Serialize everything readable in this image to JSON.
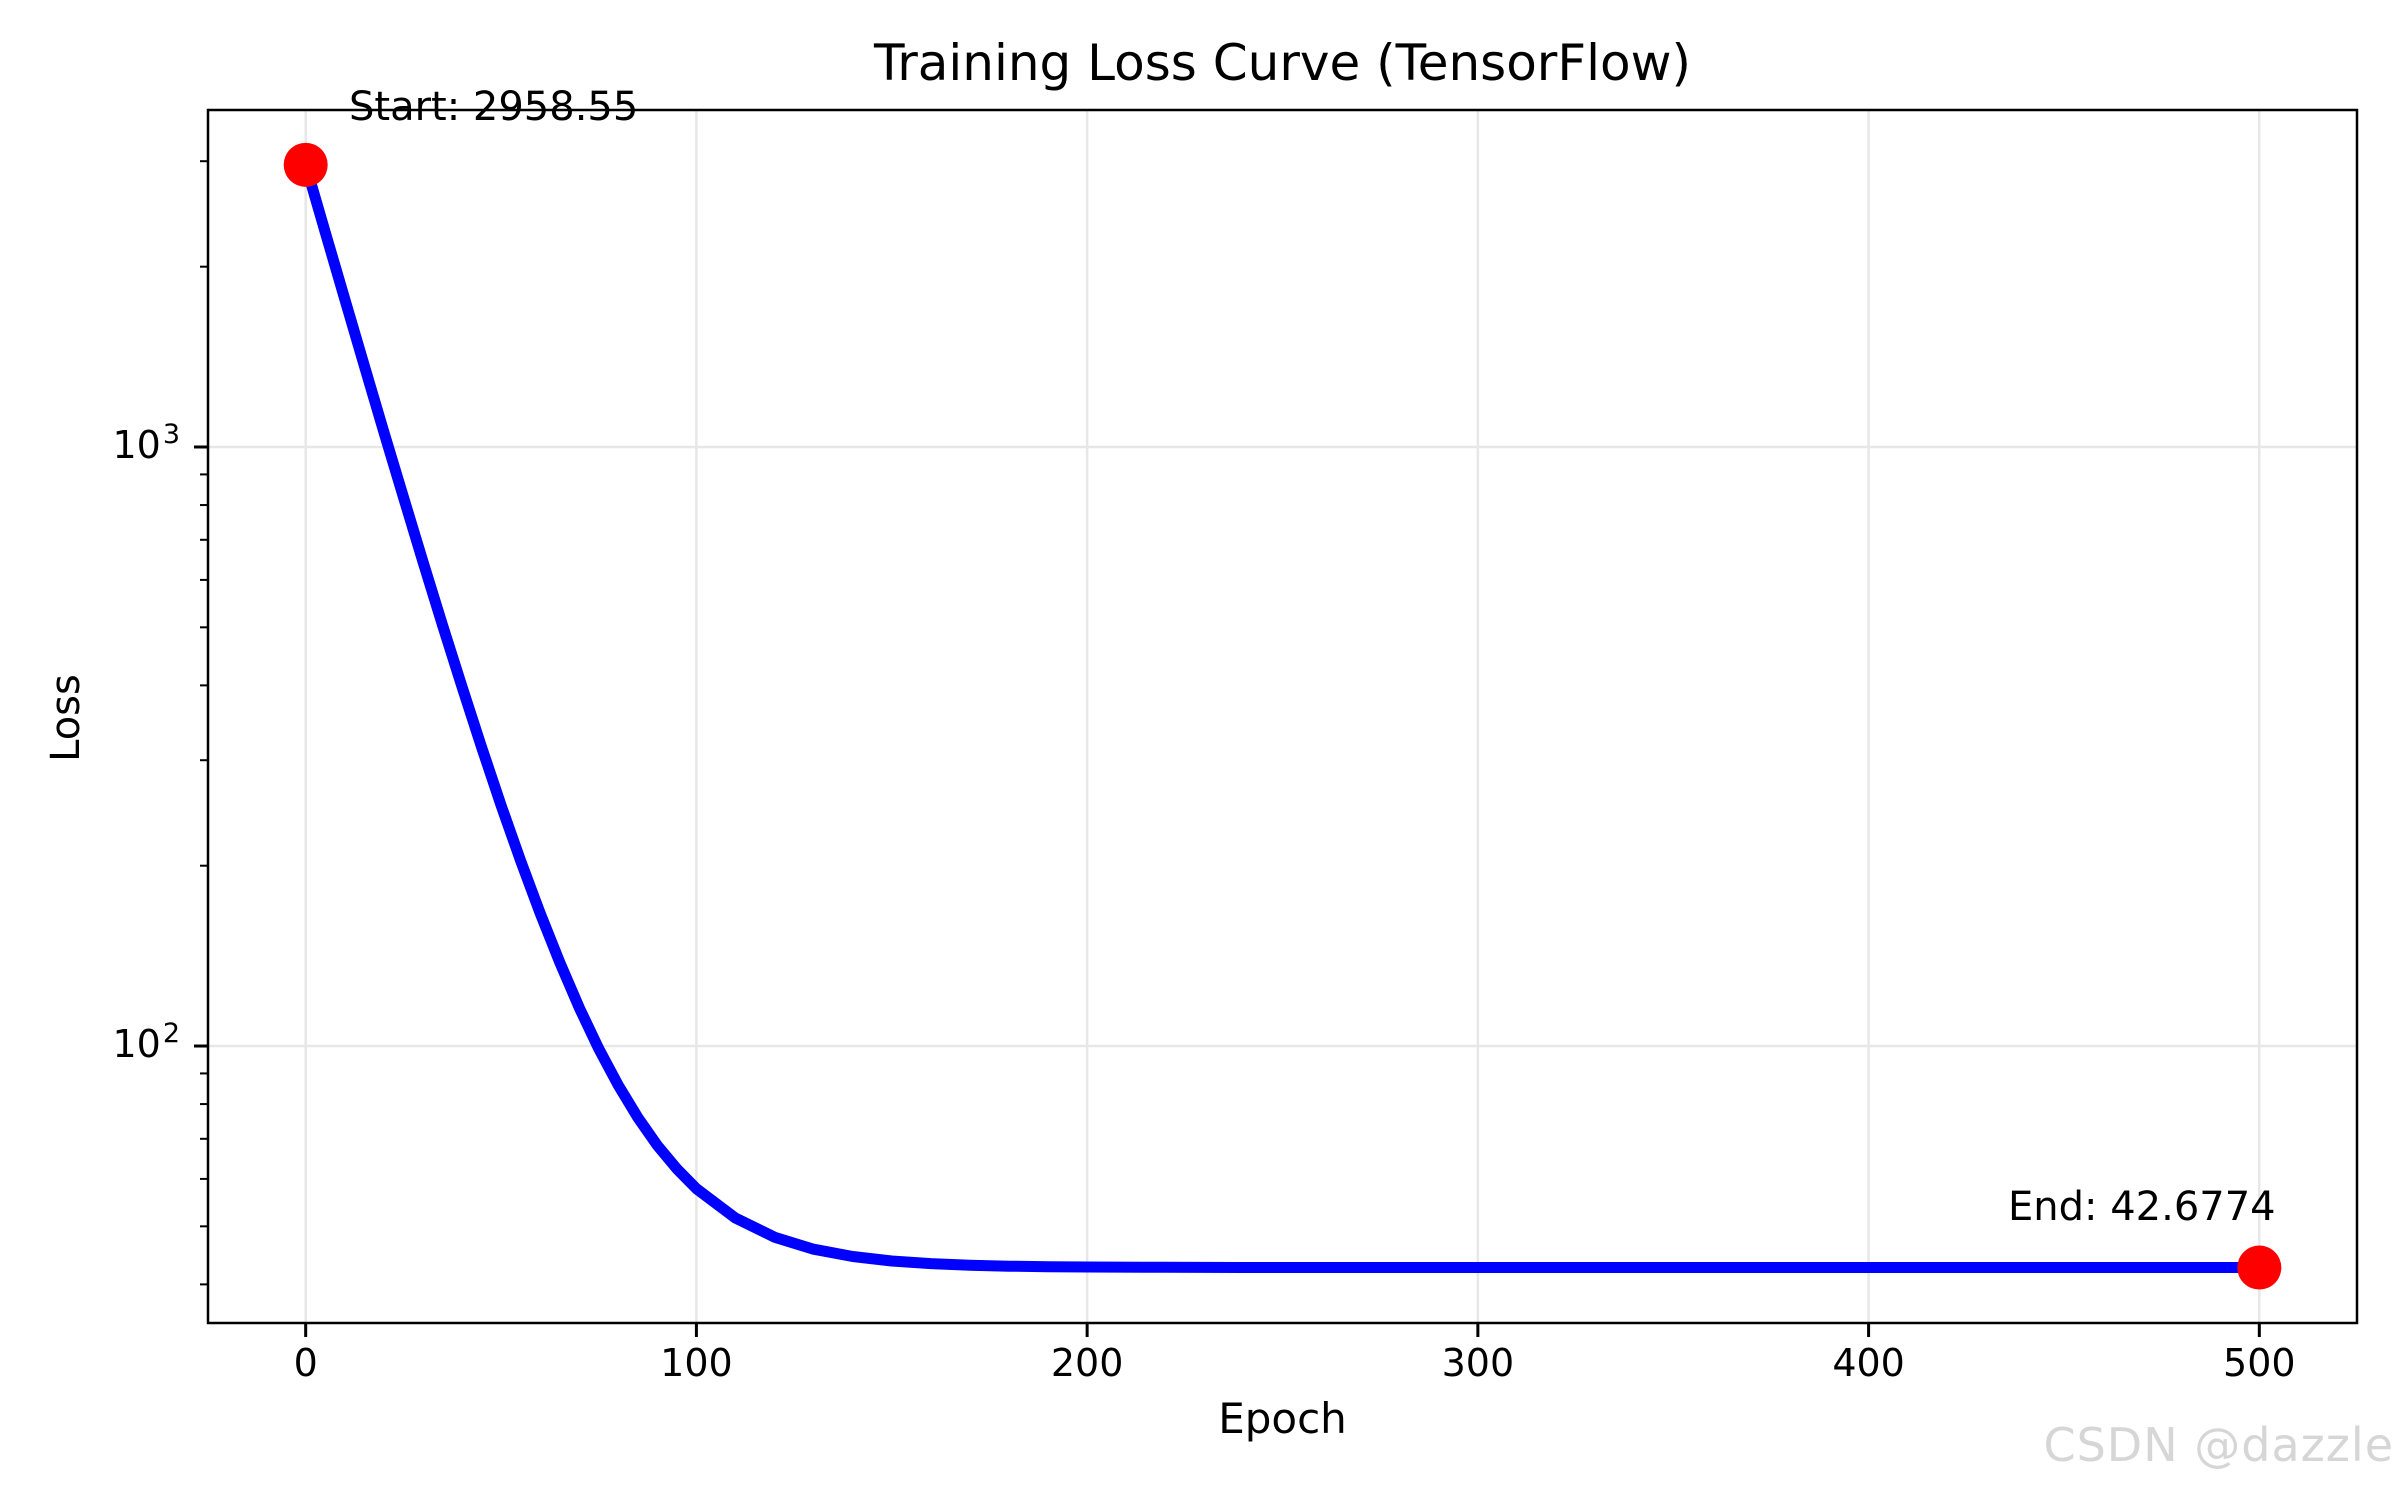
{
  "watermark": {
    "text": "CSDN @dazzle"
  },
  "chart_data": {
    "type": "line",
    "title": "Training Loss Curve (TensorFlow)",
    "xlabel": "Epoch",
    "ylabel": "Loss",
    "yscale": "log",
    "grid": true,
    "legend_position": "none",
    "xlim": [
      -25,
      525
    ],
    "ylim_log10": [
      1.5376,
      3.5626
    ],
    "x_ticks": [
      0,
      100,
      200,
      300,
      400,
      500
    ],
    "y_major_ticks": [
      {
        "value": 1000,
        "base": "10",
        "exp": "3"
      },
      {
        "value": 100,
        "base": "10",
        "exp": "2"
      }
    ],
    "y_minor_ticks": [
      3000,
      2000,
      900,
      800,
      700,
      600,
      500,
      400,
      300,
      200,
      90,
      80,
      70,
      60,
      50,
      40
    ],
    "line_color": "#0000ff",
    "marker_color": "#ff0000",
    "grid_color": "#e7e7e7",
    "annotations": {
      "start": "Start: 2958.55",
      "end": "End: 42.6774"
    },
    "start_point": {
      "epoch": 0,
      "loss": 2958.55
    },
    "end_point": {
      "epoch": 500,
      "loss": 42.6774
    },
    "series": [
      {
        "name": "loss",
        "points": [
          [
            0,
            2958.55
          ],
          [
            5,
            2284.0
          ],
          [
            10,
            1765.3
          ],
          [
            15,
            1366.8
          ],
          [
            20,
            1060.3
          ],
          [
            25,
            825.0
          ],
          [
            30,
            643.9
          ],
          [
            35,
            504.9
          ],
          [
            40,
            397.9
          ],
          [
            45,
            315.7
          ],
          [
            50,
            252.5
          ],
          [
            55,
            203.9
          ],
          [
            60,
            166.7
          ],
          [
            65,
            138.0
          ],
          [
            70,
            115.9
          ],
          [
            75,
            99.0
          ],
          [
            80,
            86.0
          ],
          [
            85,
            75.96
          ],
          [
            90,
            68.25
          ],
          [
            95,
            62.35
          ],
          [
            100,
            57.78
          ],
          [
            110,
            51.6
          ],
          [
            120,
            47.95
          ],
          [
            130,
            45.79
          ],
          [
            140,
            44.52
          ],
          [
            150,
            43.77
          ],
          [
            160,
            43.32
          ],
          [
            170,
            43.06
          ],
          [
            180,
            42.9
          ],
          [
            190,
            42.81
          ],
          [
            200,
            42.76
          ],
          [
            220,
            42.71
          ],
          [
            240,
            42.69
          ],
          [
            260,
            42.68
          ],
          [
            280,
            42.68
          ],
          [
            300,
            42.68
          ],
          [
            350,
            42.68
          ],
          [
            400,
            42.68
          ],
          [
            450,
            42.68
          ],
          [
            500,
            42.6774
          ]
        ]
      }
    ]
  }
}
